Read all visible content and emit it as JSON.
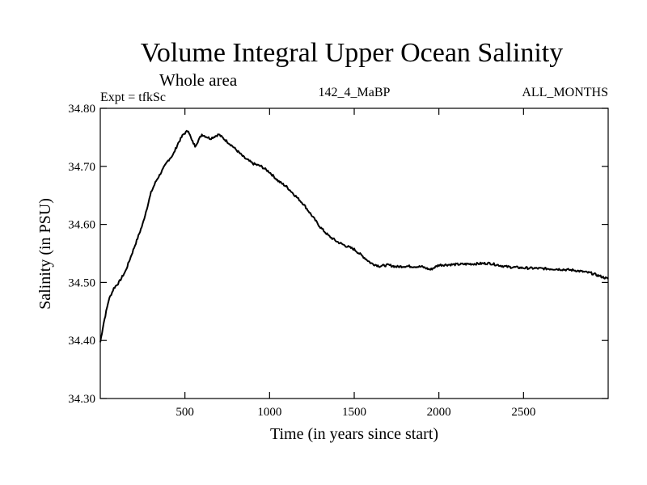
{
  "chart_data": {
    "type": "line",
    "title": "Volume Integral Upper Ocean Salinity",
    "subtitle": "Whole area",
    "expt_label": "Expt = tfkSc",
    "center_label": "142_4_MaBP",
    "right_label": "ALL_MONTHS",
    "xlabel": "Time (in years since start)",
    "ylabel": "Salinity (in PSU)",
    "xlim": [
      0,
      3000
    ],
    "ylim": [
      34.3,
      34.8
    ],
    "xticks": [
      500,
      1000,
      1500,
      2000,
      2500
    ],
    "xtick_labels": [
      "500",
      "1000",
      "1500",
      "2000",
      "2500"
    ],
    "yticks": [
      34.3,
      34.4,
      34.5,
      34.6,
      34.7,
      34.8
    ],
    "ytick_labels": [
      "34.30",
      "34.40",
      "34.50",
      "34.60",
      "34.70",
      "34.80"
    ],
    "grid": false,
    "series": [
      {
        "name": "Salinity",
        "color": "#000000",
        "x": [
          0,
          20,
          50,
          80,
          110,
          150,
          200,
          250,
          300,
          330,
          360,
          400,
          430,
          460,
          490,
          520,
          540,
          560,
          580,
          600,
          620,
          650,
          700,
          740,
          780,
          850,
          900,
          950,
          1000,
          1050,
          1100,
          1150,
          1200,
          1250,
          1300,
          1350,
          1400,
          1450,
          1500,
          1550,
          1600,
          1650,
          1700,
          1750,
          1800,
          1900,
          1950,
          2000,
          2100,
          2200,
          2300,
          2350,
          2400,
          2500,
          2600,
          2700,
          2800,
          2900,
          3000
        ],
        "values": [
          34.397,
          34.43,
          34.47,
          34.49,
          34.5,
          34.52,
          34.56,
          34.6,
          34.655,
          34.675,
          34.69,
          34.71,
          34.72,
          34.74,
          34.755,
          34.762,
          34.745,
          34.735,
          34.745,
          34.755,
          34.752,
          34.748,
          34.755,
          34.745,
          34.735,
          34.715,
          34.705,
          34.7,
          34.69,
          34.675,
          34.665,
          34.65,
          34.635,
          34.615,
          34.595,
          34.58,
          34.57,
          34.563,
          34.557,
          34.545,
          34.533,
          34.528,
          34.53,
          34.527,
          34.528,
          34.527,
          34.522,
          34.53,
          34.531,
          34.532,
          34.533,
          34.53,
          34.527,
          34.525,
          34.524,
          34.523,
          34.521,
          34.516,
          34.506
        ]
      }
    ]
  }
}
